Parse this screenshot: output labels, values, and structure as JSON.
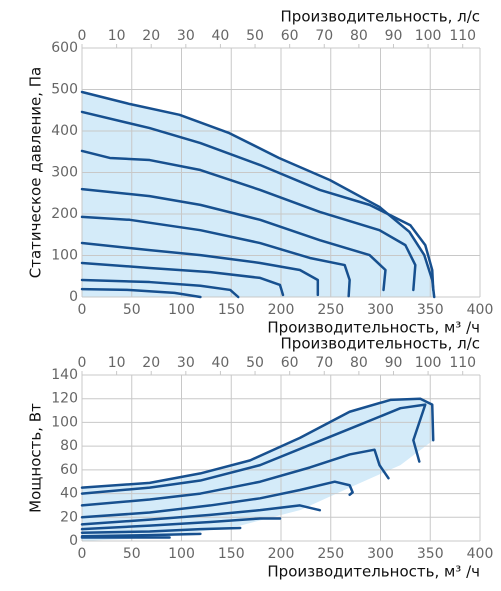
{
  "chart_data": [
    {
      "type": "line",
      "color": "#17508f",
      "grid": true,
      "x_label": "Производительность, м³ /ч",
      "x2_label": "Производительность, л/с",
      "y_label": "Статическое давление, Па",
      "xlim": [
        0,
        400
      ],
      "xticks": [
        0,
        50,
        100,
        150,
        200,
        250,
        300,
        350,
        400
      ],
      "x2lim": [
        0,
        115
      ],
      "x2ticks": [
        0,
        10,
        20,
        30,
        40,
        50,
        60,
        70,
        80,
        90,
        100,
        110
      ],
      "ylim": [
        0,
        600
      ],
      "yticks": [
        0,
        100,
        200,
        300,
        400,
        500,
        600
      ],
      "region": {
        "color": "#d4ebf9",
        "x": [
          0,
          48,
          98,
          148,
          198,
          249,
          299,
          329,
          344,
          352,
          354,
          0
        ],
        "values": [
          494,
          465,
          439,
          395,
          335,
          282,
          217,
          157,
          101,
          41,
          0,
          0
        ]
      },
      "series": [
        {
          "x": [
            0,
            48,
            98,
            148,
            198,
            249,
            299,
            329,
            344,
            352,
            354
          ],
          "values": [
            494,
            465,
            439,
            395,
            335,
            282,
            217,
            157,
            101,
            41,
            0
          ]
        },
        {
          "x": [
            0,
            68,
            119,
            179,
            239,
            289,
            330,
            345,
            352,
            353
          ],
          "values": [
            446,
            407,
            371,
            318,
            258,
            222,
            173,
            125,
            65,
            17
          ]
        },
        {
          "x": [
            0,
            28,
            68,
            119,
            179,
            239,
            299,
            325,
            335,
            333
          ],
          "values": [
            352,
            335,
            330,
            306,
            258,
            205,
            161,
            125,
            77,
            17
          ]
        },
        {
          "x": [
            0,
            68,
            119,
            179,
            239,
            289,
            305,
            303
          ],
          "values": [
            260,
            243,
            222,
            186,
            137,
            101,
            65,
            17
          ]
        },
        {
          "x": [
            0,
            48,
            119,
            179,
            229,
            264,
            269,
            268
          ],
          "values": [
            193,
            186,
            161,
            130,
            94,
            77,
            41,
            2
          ]
        },
        {
          "x": [
            0,
            68,
            119,
            179,
            219,
            237,
            237
          ],
          "values": [
            130,
            113,
            101,
            82,
            65,
            41,
            5
          ]
        },
        {
          "x": [
            0,
            68,
            129,
            179,
            199,
            202
          ],
          "values": [
            82,
            70,
            60,
            46,
            29,
            5
          ]
        },
        {
          "x": [
            0,
            68,
            119,
            149,
            157
          ],
          "values": [
            41,
            36,
            27,
            17,
            0
          ]
        },
        {
          "x": [
            0,
            48,
            93,
            119
          ],
          "values": [
            19,
            17,
            10,
            0
          ]
        }
      ]
    },
    {
      "type": "line",
      "color": "#17508f",
      "grid": true,
      "x_label": "Производительность, м³ /ч",
      "x2_label": "Производительность, л/с",
      "y_label": "Мощность, Вт",
      "xlim": [
        0,
        400
      ],
      "xticks": [
        0,
        50,
        100,
        150,
        200,
        250,
        300,
        350,
        400
      ],
      "x2lim": [
        0,
        115
      ],
      "x2ticks": [
        0,
        10,
        20,
        30,
        40,
        50,
        60,
        70,
        80,
        90,
        100,
        110
      ],
      "ylim": [
        0,
        140
      ],
      "yticks": [
        0,
        20,
        40,
        60,
        80,
        100,
        120,
        140
      ],
      "region": {
        "color": "#d4ebf9",
        "x": [
          0,
          68,
          119,
          169,
          219,
          269,
          310,
          340,
          352,
          353,
          320,
          269,
          219,
          159,
          78,
          0
        ],
        "values": [
          45,
          49,
          57,
          68,
          87,
          109,
          119,
          120,
          115,
          85,
          64,
          45,
          26,
          13,
          3,
          0
        ]
      },
      "series": [
        {
          "x": [
            0,
            68,
            119,
            169,
            219,
            269,
            310,
            340,
            352,
            353
          ],
          "values": [
            45,
            49,
            57,
            68,
            87,
            109,
            119,
            120,
            115,
            85
          ]
        },
        {
          "x": [
            0,
            68,
            119,
            179,
            229,
            279,
            320,
            345,
            333,
            339
          ],
          "values": [
            40,
            45,
            51,
            64,
            81,
            98,
            112,
            115,
            85,
            67
          ]
        },
        {
          "x": [
            0,
            68,
            119,
            179,
            229,
            269,
            294,
            299,
            308
          ],
          "values": [
            30,
            35,
            40,
            50,
            62,
            73,
            77,
            64,
            53
          ]
        },
        {
          "x": [
            0,
            68,
            129,
            179,
            219,
            254,
            269,
            272,
            269
          ],
          "values": [
            20,
            24,
            30,
            36,
            43,
            50,
            47,
            41,
            39
          ]
        },
        {
          "x": [
            0,
            68,
            129,
            179,
            219,
            239
          ],
          "values": [
            14,
            18,
            22,
            26,
            30,
            26
          ]
        },
        {
          "x": [
            0,
            68,
            129,
            179,
            199
          ],
          "values": [
            10,
            13,
            16,
            19,
            19
          ]
        },
        {
          "x": [
            0,
            68,
            119,
            159
          ],
          "values": [
            7,
            8,
            10,
            11
          ]
        },
        {
          "x": [
            0,
            68,
            119
          ],
          "values": [
            4,
            5,
            6
          ]
        },
        {
          "x": [
            0,
            88
          ],
          "values": [
            3,
            3
          ]
        }
      ]
    }
  ]
}
